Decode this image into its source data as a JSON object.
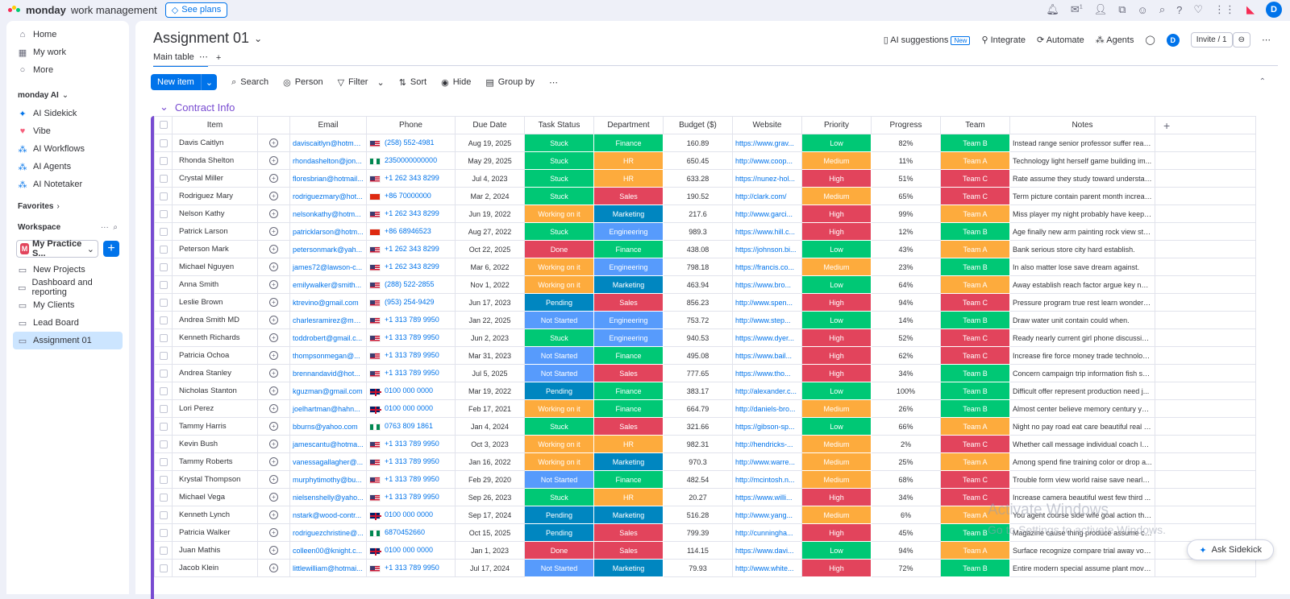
{
  "app": {
    "brand_bold": "monday",
    "brand_light": "work management",
    "see_plans": "See plans",
    "notif_count": "1",
    "user_initial": "D"
  },
  "sidebar": {
    "top_items": [
      {
        "label": "Home",
        "icon": "home-icon"
      },
      {
        "label": "My work",
        "icon": "calendar-icon"
      },
      {
        "label": "More",
        "icon": "more-icon"
      }
    ],
    "ai_section": "monday AI",
    "ai_items": [
      {
        "label": "AI Sidekick"
      },
      {
        "label": "Vibe"
      },
      {
        "label": "AI Workflows"
      },
      {
        "label": "AI Agents"
      },
      {
        "label": "AI Notetaker"
      }
    ],
    "favorites": "Favorites",
    "workspace": "Workspace",
    "workspace_name": "My Practice S...",
    "workspace_badge": "M",
    "boards": [
      "New Projects",
      "Dashboard and reporting",
      "My Clients",
      "Lead Board",
      "Assignment 01"
    ]
  },
  "board": {
    "title": "Assignment 01",
    "tab_main": "Main table",
    "actions": {
      "ai": "AI suggestions",
      "new": "New",
      "integrate": "Integrate",
      "automate": "Automate",
      "agents": "Agents",
      "invite": "Invite / 1"
    },
    "toolbar": {
      "new_item": "New item",
      "search": "Search",
      "person": "Person",
      "filter": "Filter",
      "sort": "Sort",
      "hide": "Hide",
      "group_by": "Group by"
    },
    "group": "Contract Info"
  },
  "columns": [
    "Item",
    "Email",
    "Phone",
    "Due Date",
    "Task Status",
    "Department",
    "Budget ($)",
    "Website",
    "Priority",
    "Progress",
    "Team",
    "Notes"
  ],
  "colors": {
    "Stuck": "#00c875",
    "Working on it": "#fdab3d",
    "Done": "#e2445c",
    "Pending": "#0086c0",
    "Not Started": "#579bfc",
    "Finance": "#00c875",
    "HR": "#fdab3d",
    "Sales": "#e2445c",
    "Marketing": "#0086c0",
    "Engineering": "#579bfc",
    "Low": "#00c875",
    "Medium": "#fdab3d",
    "High": "#e2445c",
    "Team A": "#fdab3d",
    "Team B": "#00c875",
    "Team C": "#e2445c"
  },
  "rows": [
    {
      "item": "Davis Caitlyn",
      "email": "daviscaitlyn@hotma...",
      "flag": "us",
      "phone": "(258) 552-4981",
      "due": "Aug 19, 2025",
      "status": "Stuck",
      "dept": "Finance",
      "budget": "160.89",
      "site": "https://www.grav...",
      "priority": "Low",
      "progress": "82%",
      "team": "Team B",
      "notes": "Instead range senior professor suffer reach."
    },
    {
      "item": "Rhonda Shelton",
      "email": "rhondashelton@jon...",
      "flag": "ng",
      "phone": "2350000000000",
      "due": "May 29, 2025",
      "status": "Stuck",
      "dept": "HR",
      "budget": "650.45",
      "site": "http://www.coop...",
      "priority": "Medium",
      "progress": "11%",
      "team": "Team A",
      "notes": "Technology light herself game building im..."
    },
    {
      "item": "Crystal Miller",
      "email": "floresbrian@hotmail...",
      "flag": "us",
      "phone": "+1 262 343 8299",
      "due": "Jul 4, 2023",
      "status": "Stuck",
      "dept": "HR",
      "budget": "633.28",
      "site": "https://nunez-hol...",
      "priority": "High",
      "progress": "51%",
      "team": "Team C",
      "notes": "Rate assume they study toward understand."
    },
    {
      "item": "Rodriguez Mary",
      "email": "rodriguezmary@hot...",
      "flag": "cn",
      "phone": "+86 70000000",
      "due": "Mar 2, 2024",
      "status": "Stuck",
      "dept": "Sales",
      "budget": "190.52",
      "site": "http://clark.com/",
      "priority": "Medium",
      "progress": "65%",
      "team": "Team C",
      "notes": "Term picture contain parent month increas..."
    },
    {
      "item": "Nelson Kathy",
      "email": "nelsonkathy@hotm...",
      "flag": "us",
      "phone": "+1 262 343 8299",
      "due": "Jun 19, 2022",
      "status": "Working on it",
      "dept": "Marketing",
      "budget": "217.6",
      "site": "http://www.garci...",
      "priority": "High",
      "progress": "99%",
      "team": "Team A",
      "notes": "Miss player my night probably have keep ..."
    },
    {
      "item": "Patrick Larson",
      "email": "patricklarson@hotm...",
      "flag": "cn",
      "phone": "+86 68946523",
      "due": "Aug 27, 2022",
      "status": "Stuck",
      "dept": "Engineering",
      "budget": "989.3",
      "site": "https://www.hill.c...",
      "priority": "High",
      "progress": "12%",
      "team": "Team B",
      "notes": "Age finally new arm painting rock view stra..."
    },
    {
      "item": "Peterson Mark",
      "email": "petersonmark@yah...",
      "flag": "us",
      "phone": "+1 262 343 8299",
      "due": "Oct 22, 2025",
      "status": "Done",
      "dept": "Finance",
      "budget": "438.08",
      "site": "https://johnson.bi...",
      "priority": "Low",
      "progress": "43%",
      "team": "Team A",
      "notes": "Bank serious store city hard establish."
    },
    {
      "item": "Michael Nguyen",
      "email": "james72@lawson-c...",
      "flag": "us",
      "phone": "+1 262 343 8299",
      "due": "Mar 6, 2022",
      "status": "Working on it",
      "dept": "Engineering",
      "budget": "798.18",
      "site": "https://francis.co...",
      "priority": "Medium",
      "progress": "23%",
      "team": "Team B",
      "notes": "In also matter lose save dream against."
    },
    {
      "item": "Anna Smith",
      "email": "emilywalker@smith...",
      "flag": "us",
      "phone": "(288) 522-2855",
      "due": "Nov 1, 2022",
      "status": "Working on it",
      "dept": "Marketing",
      "budget": "463.94",
      "site": "https://www.bro...",
      "priority": "Low",
      "progress": "64%",
      "team": "Team A",
      "notes": "Away establish reach factor argue key new..."
    },
    {
      "item": "Leslie Brown",
      "email": "ktrevino@gmail.com",
      "flag": "us",
      "phone": "(953) 254-9429",
      "due": "Jun 17, 2023",
      "status": "Pending",
      "dept": "Sales",
      "budget": "856.23",
      "site": "http://www.spen...",
      "priority": "High",
      "progress": "94%",
      "team": "Team C",
      "notes": "Pressure program true rest learn wonder a..."
    },
    {
      "item": "Andrea Smith MD",
      "email": "charlesramirez@mo...",
      "flag": "us",
      "phone": "+1 313 789 9950",
      "due": "Jan 22, 2025",
      "status": "Not Started",
      "dept": "Engineering",
      "budget": "753.72",
      "site": "http://www.step...",
      "priority": "Low",
      "progress": "14%",
      "team": "Team B",
      "notes": "Draw water unit contain could when."
    },
    {
      "item": "Kenneth Richards",
      "email": "toddrobert@gmail.c...",
      "flag": "us",
      "phone": "+1 313 789 9950",
      "due": "Jun 2, 2023",
      "status": "Stuck",
      "dept": "Engineering",
      "budget": "940.53",
      "site": "https://www.dyer...",
      "priority": "High",
      "progress": "52%",
      "team": "Team C",
      "notes": "Ready nearly current girl phone discussion..."
    },
    {
      "item": "Patricia Ochoa",
      "email": "thompsonmegan@...",
      "flag": "us",
      "phone": "+1 313 789 9950",
      "due": "Mar 31, 2023",
      "status": "Not Started",
      "dept": "Finance",
      "budget": "495.08",
      "site": "https://www.bail...",
      "priority": "High",
      "progress": "62%",
      "team": "Team C",
      "notes": "Increase fire force money trade technolog..."
    },
    {
      "item": "Andrea Stanley",
      "email": "brennandavid@hot...",
      "flag": "us",
      "phone": "+1 313 789 9950",
      "due": "Jul 5, 2025",
      "status": "Not Started",
      "dept": "Sales",
      "budget": "777.65",
      "site": "https://www.tho...",
      "priority": "High",
      "progress": "34%",
      "team": "Team B",
      "notes": "Concern campaign trip information fish su..."
    },
    {
      "item": "Nicholas Stanton",
      "email": "kguzman@gmail.com",
      "flag": "gb",
      "phone": "0100 000 0000",
      "due": "Mar 19, 2022",
      "status": "Pending",
      "dept": "Finance",
      "budget": "383.17",
      "site": "http://alexander.c...",
      "priority": "Low",
      "progress": "100%",
      "team": "Team B",
      "notes": "Difficult offer represent production need j..."
    },
    {
      "item": "Lori Perez",
      "email": "joelhartman@hahn...",
      "flag": "gb",
      "phone": "0100 000 0000",
      "due": "Feb 17, 2021",
      "status": "Working on it",
      "dept": "Finance",
      "budget": "664.79",
      "site": "http://daniels-bro...",
      "priority": "Medium",
      "progress": "26%",
      "team": "Team B",
      "notes": "Almost center believe memory century yar..."
    },
    {
      "item": "Tammy Harris",
      "email": "bburns@yahoo.com",
      "flag": "ng",
      "phone": "0763 809 1861",
      "due": "Jan 4, 2024",
      "status": "Stuck",
      "dept": "Sales",
      "budget": "321.66",
      "site": "https://gibson-sp...",
      "priority": "Low",
      "progress": "66%",
      "team": "Team A",
      "notes": "Night no pay road eat care beautiful real p..."
    },
    {
      "item": "Kevin Bush",
      "email": "jamescantu@hotma...",
      "flag": "us",
      "phone": "+1 313 789 9950",
      "due": "Oct 3, 2023",
      "status": "Working on it",
      "dept": "HR",
      "budget": "982.31",
      "site": "http://hendricks-...",
      "priority": "Medium",
      "progress": "2%",
      "team": "Team C",
      "notes": "Whether call message individual coach lat..."
    },
    {
      "item": "Tammy Roberts",
      "email": "vanessagallagher@...",
      "flag": "us",
      "phone": "+1 313 789 9950",
      "due": "Jan 16, 2022",
      "status": "Working on it",
      "dept": "Marketing",
      "budget": "970.3",
      "site": "http://www.warre...",
      "priority": "Medium",
      "progress": "25%",
      "team": "Team A",
      "notes": "Among spend fine training color or drop a..."
    },
    {
      "item": "Krystal Thompson",
      "email": "murphytimothy@bu...",
      "flag": "us",
      "phone": "+1 313 789 9950",
      "due": "Feb 29, 2020",
      "status": "Not Started",
      "dept": "Finance",
      "budget": "482.54",
      "site": "http://mcintosh.n...",
      "priority": "Medium",
      "progress": "68%",
      "team": "Team C",
      "notes": "Trouble form view world raise save nearly ..."
    },
    {
      "item": "Michael Vega",
      "email": "nielsenshelly@yaho...",
      "flag": "us",
      "phone": "+1 313 789 9950",
      "due": "Sep 26, 2023",
      "status": "Stuck",
      "dept": "HR",
      "budget": "20.27",
      "site": "https://www.willi...",
      "priority": "High",
      "progress": "34%",
      "team": "Team C",
      "notes": "Increase camera beautiful west few third ..."
    },
    {
      "item": "Kenneth Lynch",
      "email": "nstark@wood-contr...",
      "flag": "gb",
      "phone": "0100 000 0000",
      "due": "Sep 17, 2024",
      "status": "Pending",
      "dept": "Marketing",
      "budget": "516.28",
      "site": "http://www.yang...",
      "priority": "Medium",
      "progress": "6%",
      "team": "Team A",
      "notes": "You agent course side wife goal action thir..."
    },
    {
      "item": "Patricia Walker",
      "email": "rodriguezchristine@...",
      "flag": "ng",
      "phone": "6870452660",
      "due": "Oct 15, 2025",
      "status": "Pending",
      "dept": "Sales",
      "budget": "799.39",
      "site": "http://cunningha...",
      "priority": "High",
      "progress": "45%",
      "team": "Team B",
      "notes": "Magazine cause thing produce assume cla..."
    },
    {
      "item": "Juan Mathis",
      "email": "colleen00@knight.c...",
      "flag": "gb",
      "phone": "0100 000 0000",
      "due": "Jan 1, 2023",
      "status": "Done",
      "dept": "Sales",
      "budget": "114.15",
      "site": "https://www.davi...",
      "priority": "Low",
      "progress": "94%",
      "team": "Team A",
      "notes": "Surface recognize compare trial away voic..."
    },
    {
      "item": "Jacob Klein",
      "email": "littlewilliam@hotmai...",
      "flag": "us",
      "phone": "+1 313 789 9950",
      "due": "Jul 17, 2024",
      "status": "Not Started",
      "dept": "Marketing",
      "budget": "79.93",
      "site": "http://www.white...",
      "priority": "High",
      "progress": "72%",
      "team": "Team B",
      "notes": "Entire modern special assume plant movie ..."
    }
  ],
  "overlay": {
    "watermark1": "Activate Windows",
    "watermark2": "Go to Settings to activate Windows.",
    "sidekick": "Ask Sidekick"
  }
}
